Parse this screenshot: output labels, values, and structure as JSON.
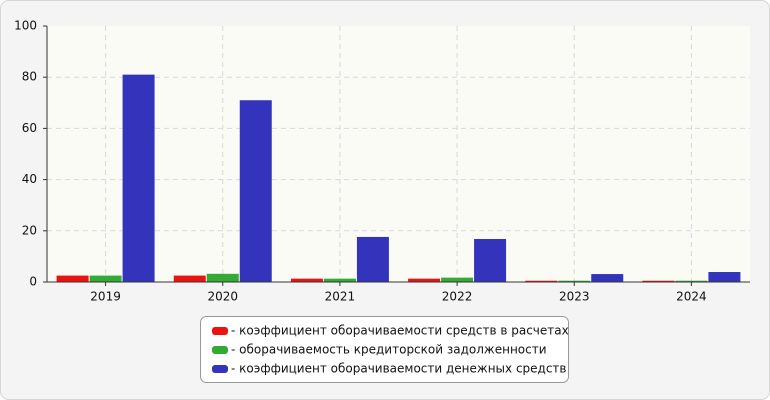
{
  "chart_data": {
    "type": "bar",
    "categories": [
      "2019",
      "2020",
      "2021",
      "2022",
      "2023",
      "2024"
    ],
    "series": [
      {
        "name": "- коэффициент оборачиваемости средств в расчетах",
        "color": "#ee1111",
        "values": [
          2.5,
          2.5,
          1.3,
          1.3,
          0.5,
          0.5
        ]
      },
      {
        "name": "- оборачиваемость кредиторской задолженности",
        "color": "#33aa33",
        "values": [
          2.5,
          3.2,
          1.3,
          1.7,
          0.5,
          0.5
        ]
      },
      {
        "name": "- коэффициент оборачиваемости денежных средств",
        "color": "#3333bb",
        "values": [
          81,
          71,
          17.6,
          16.8,
          3.1,
          3.9
        ]
      }
    ],
    "ylim": [
      0,
      100
    ],
    "yticks": [
      0,
      20,
      40,
      60,
      80,
      100
    ],
    "grid": true,
    "legend": "bottom"
  }
}
